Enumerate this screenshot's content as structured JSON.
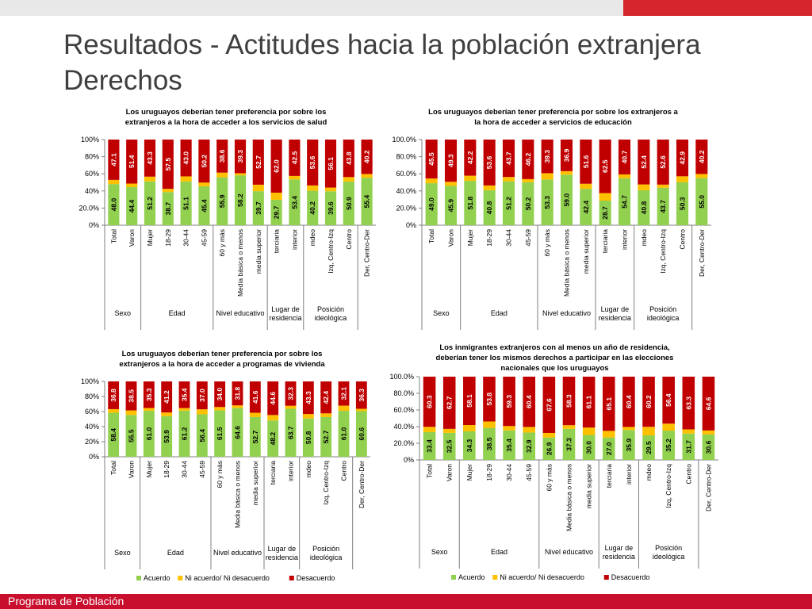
{
  "header": {
    "title_line1": "Resultados - Actitudes hacia la población extranjera",
    "title_line2": "Derechos"
  },
  "footer": {
    "label": "Programa de Población"
  },
  "colors": {
    "acuerdo": "#92d050",
    "ni": "#ffc000",
    "desacuerdo": "#c00000",
    "accent": "#d4262c"
  },
  "chart_data": [
    {
      "type": "bar",
      "stacked": true,
      "title_lines": [
        "Los uruguayos deberían tener preferencia por sobre los",
        "extranjeros a la hora de acceder a los servicios de salud"
      ],
      "ylim": [
        0,
        100
      ],
      "yticks": [
        "0%",
        "20.0%",
        "40%",
        "60%",
        "80%",
        "100%"
      ],
      "categories": [
        "Total",
        "Varon",
        "Mujer",
        "18-29",
        "30-44",
        "45-59",
        "60 y más",
        "Media básica o menos",
        "media superior",
        "terciaria",
        "interior",
        "mdeo",
        "Izq, Centro-Izq",
        "Centro",
        "Der, Centro-Der"
      ],
      "groups": [
        {
          "label": [
            "Sexo"
          ],
          "count": 2
        },
        {
          "label": [
            "Edad"
          ],
          "count": 4
        },
        {
          "label": [
            "Nivel educativo"
          ],
          "count": 3
        },
        {
          "label": [
            "Lugar de",
            "residencia"
          ],
          "count": 2
        },
        {
          "label": [
            "Posición",
            "ideológica"
          ],
          "count": 3
        }
      ],
      "series": [
        {
          "name": "Acuerdo",
          "values": [
            48.0,
            44.4,
            51.2,
            38.7,
            51.1,
            45.4,
            55.9,
            58.2,
            39.7,
            29.7,
            53.4,
            40.2,
            39.6,
            50.9,
            55.4
          ]
        },
        {
          "name": "Ni acuerdo/ Ni desacuerdo",
          "values": [
            4.9,
            4.2,
            5.5,
            3.8,
            5.9,
            4.4,
            5.5,
            2.5,
            7.6,
            8.3,
            4.1,
            6.2,
            4.3,
            5.3,
            4.4
          ]
        },
        {
          "name": "Desacuerdo",
          "values": [
            47.1,
            51.4,
            43.3,
            57.5,
            43.0,
            50.2,
            38.6,
            39.3,
            52.7,
            62.0,
            42.5,
            53.6,
            56.1,
            43.8,
            40.2
          ]
        }
      ],
      "show_legend": false
    },
    {
      "type": "bar",
      "stacked": true,
      "title_lines": [
        "Los uruguayos deberían tener preferencia por sobre los extranjeros a",
        "la hora de acceder a servicios de educación"
      ],
      "ylim": [
        0,
        100
      ],
      "yticks": [
        "0%",
        "20.0%",
        "40.0%",
        "60.0%",
        "80.0%",
        "100.0%"
      ],
      "categories": [
        "Total",
        "Varon",
        "Mujer",
        "18-29",
        "30-44",
        "45-59",
        "60 y más",
        "Media básica o menos",
        "media superior",
        "terciaria",
        "interior",
        "mdeo",
        "Izq, Centro-Izq",
        "Centro",
        "Der, Centro-Der"
      ],
      "groups": [
        {
          "label": [
            "Sexo"
          ],
          "count": 2
        },
        {
          "label": [
            "Edad"
          ],
          "count": 4
        },
        {
          "label": [
            "Nivel educativo"
          ],
          "count": 3
        },
        {
          "label": [
            "Lugar de",
            "residencia"
          ],
          "count": 2
        },
        {
          "label": [
            "Posición",
            "ideológica"
          ],
          "count": 3
        }
      ],
      "series": [
        {
          "name": "Acuerdo",
          "values": [
            49.0,
            45.9,
            51.8,
            40.8,
            51.2,
            50.2,
            53.3,
            59.0,
            42.4,
            28.7,
            54.7,
            40.8,
            43.7,
            50.3,
            55.0
          ]
        },
        {
          "name": "Ni acuerdo/ Ni desacuerdo",
          "values": [
            5.5,
            4.8,
            6.0,
            5.6,
            5.1,
            3.6,
            7.4,
            4.1,
            6.0,
            8.8,
            4.6,
            6.8,
            3.7,
            6.8,
            4.8
          ]
        },
        {
          "name": "Desacuerdo",
          "values": [
            45.5,
            49.3,
            42.2,
            53.6,
            43.7,
            46.2,
            39.3,
            36.9,
            51.6,
            62.5,
            40.7,
            52.4,
            52.6,
            42.9,
            40.2
          ]
        }
      ],
      "show_legend": false
    },
    {
      "type": "bar",
      "stacked": true,
      "title_lines": [
        "Los uruguayos deberían tener preferencia por sobre los",
        "extranjeros a la hora de acceder a programas de vivienda"
      ],
      "ylim": [
        0,
        100
      ],
      "yticks": [
        "0%",
        "20%",
        "40%",
        "60%",
        "80%",
        "100%"
      ],
      "categories": [
        "Total",
        "Varon",
        "Mujer",
        "18-29",
        "30-44",
        "45-59",
        "60 y más",
        "Media básica o menos",
        "media superior",
        "terciaria",
        "interior",
        "mdeo",
        "Izq, Centro-Izq",
        "Centro",
        "Der, Centro-Der"
      ],
      "groups": [
        {
          "label": [
            "Sexo"
          ],
          "count": 2
        },
        {
          "label": [
            "Edad"
          ],
          "count": 4
        },
        {
          "label": [
            "Nivel educativo"
          ],
          "count": 3
        },
        {
          "label": [
            "Lugar de",
            "residencia"
          ],
          "count": 2
        },
        {
          "label": [
            "Posición",
            "ideológica"
          ],
          "count": 3
        }
      ],
      "series": [
        {
          "name": "Acuerdo",
          "values": [
            58.4,
            55.5,
            61.0,
            53.9,
            61.2,
            56.4,
            61.5,
            64.6,
            52.7,
            48.2,
            63.7,
            50.8,
            52.7,
            61.0,
            60.6
          ]
        },
        {
          "name": "Ni acuerdo/ Ni desacuerdo",
          "values": [
            4.8,
            6.0,
            3.7,
            4.9,
            3.4,
            6.6,
            4.5,
            3.6,
            5.7,
            7.2,
            4.0,
            5.9,
            4.9,
            6.9,
            3.1
          ]
        },
        {
          "name": "Desacuerdo",
          "values": [
            36.8,
            38.5,
            35.3,
            41.2,
            35.4,
            37.0,
            34.0,
            31.8,
            41.6,
            44.6,
            32.3,
            43.3,
            42.4,
            32.1,
            36.3
          ]
        }
      ],
      "legend": [
        "Acuerdo",
        "Ni acuerdo/ Ni desacuerdo",
        "Desacuerdo"
      ],
      "show_legend": true
    },
    {
      "type": "bar",
      "stacked": true,
      "title_lines": [
        "Los inmigrantes extranjeros con al menos un año de residencia,",
        "deberían tener los mismos derechos a participar en las elecciones",
        "nacionales que los uruguayos"
      ],
      "ylim": [
        0,
        100
      ],
      "yticks": [
        "0%",
        "20.0%",
        "40.0%",
        "60.0%",
        "80.0%",
        "100.0%"
      ],
      "categories": [
        "Total",
        "Varon",
        "Mujer",
        "18-29",
        "30-44",
        "45-59",
        "60 y más",
        "Media básica o menos",
        "media superior",
        "terciaria",
        "interior",
        "mdeo",
        "Izq, Centro-Izq",
        "Centro",
        "Der, Centro-Der"
      ],
      "groups": [
        {
          "label": [
            "Sexo"
          ],
          "count": 2
        },
        {
          "label": [
            "Edad"
          ],
          "count": 4
        },
        {
          "label": [
            "Nivel educativo"
          ],
          "count": 3
        },
        {
          "label": [
            "Lugar de",
            "residencia"
          ],
          "count": 2
        },
        {
          "label": [
            "Posición",
            "ideológica"
          ],
          "count": 3
        }
      ],
      "series": [
        {
          "name": "Acuerdo",
          "values": [
            33.4,
            32.5,
            34.3,
            38.5,
            35.4,
            32.9,
            26.9,
            37.3,
            30.0,
            27.0,
            35.9,
            29.5,
            35.2,
            31.7,
            30.6
          ]
        },
        {
          "name": "Ni acuerdo/ Ni desacuerdo",
          "values": [
            6.3,
            4.8,
            7.6,
            7.7,
            5.3,
            6.7,
            5.5,
            4.4,
            8.9,
            7.9,
            3.7,
            10.3,
            8.4,
            5.0,
            4.8
          ]
        },
        {
          "name": "Desacuerdo",
          "values": [
            60.3,
            62.7,
            58.1,
            53.8,
            59.3,
            60.4,
            67.6,
            58.3,
            61.1,
            65.1,
            60.4,
            60.2,
            56.4,
            63.3,
            64.6
          ]
        }
      ],
      "legend": [
        "Acuerdo",
        "Ni acuerdo/ Ni desacuerdo",
        "Desacuerdo"
      ],
      "show_legend": true
    }
  ]
}
